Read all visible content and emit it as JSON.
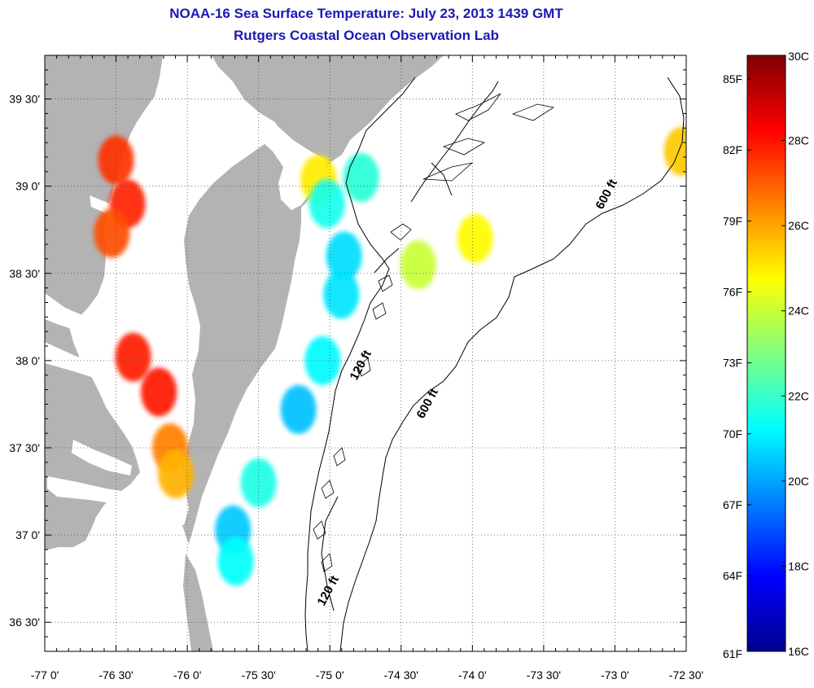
{
  "title": {
    "line1": "NOAA-16 Sea Surface Temperature:  July 23, 2013 1439 GMT",
    "line2": "Rutgers Coastal Ocean Observation Lab",
    "color": "#1a1ab4"
  },
  "map": {
    "lon_range": [
      -77.0,
      -72.5
    ],
    "lat_range": [
      36.333,
      39.75
    ],
    "land_color": "#b3b3b3",
    "water_color": "#ffffff",
    "grid": true,
    "lon_ticks": [
      {
        "value": -77.0,
        "label": "-77 0'"
      },
      {
        "value": -76.5,
        "label": "-76 30'"
      },
      {
        "value": -76.0,
        "label": "-76 0'"
      },
      {
        "value": -75.5,
        "label": "-75 30'"
      },
      {
        "value": -75.0,
        "label": "-75 0'"
      },
      {
        "value": -74.5,
        "label": "-74 30'"
      },
      {
        "value": -74.0,
        "label": "-74 0'"
      },
      {
        "value": -73.5,
        "label": "-73 30'"
      },
      {
        "value": -73.0,
        "label": "-73 0'"
      },
      {
        "value": -72.5,
        "label": "-72 30'"
      }
    ],
    "lat_ticks": [
      {
        "value": 39.5,
        "label": "39 30'"
      },
      {
        "value": 39.0,
        "label": "39 0'"
      },
      {
        "value": 38.5,
        "label": "38 30'"
      },
      {
        "value": 38.0,
        "label": "38 0'"
      },
      {
        "value": 37.5,
        "label": "37 30'"
      },
      {
        "value": 37.0,
        "label": "37 0'"
      },
      {
        "value": 36.5,
        "label": "36 30'"
      }
    ],
    "contour_labels": [
      "120 ft",
      "600 ft",
      "600 ft",
      "120 ft"
    ],
    "sst_patches": [
      {
        "lon": -76.5,
        "lat": 39.15,
        "temp_c": 27.6
      },
      {
        "lon": -76.42,
        "lat": 38.9,
        "temp_c": 27.8
      },
      {
        "lon": -76.53,
        "lat": 38.73,
        "temp_c": 27.2
      },
      {
        "lon": -76.38,
        "lat": 38.02,
        "temp_c": 27.9
      },
      {
        "lon": -76.2,
        "lat": 37.82,
        "temp_c": 28.0
      },
      {
        "lon": -76.12,
        "lat": 37.5,
        "temp_c": 26.5
      },
      {
        "lon": -76.08,
        "lat": 37.35,
        "temp_c": 25.8
      },
      {
        "lon": -75.08,
        "lat": 39.04,
        "temp_c": 25.0
      },
      {
        "lon": -75.02,
        "lat": 38.9,
        "temp_c": 21.5
      },
      {
        "lon": -74.78,
        "lat": 39.05,
        "temp_c": 21.8
      },
      {
        "lon": -74.9,
        "lat": 38.6,
        "temp_c": 20.8
      },
      {
        "lon": -74.92,
        "lat": 38.38,
        "temp_c": 20.9
      },
      {
        "lon": -75.05,
        "lat": 38.0,
        "temp_c": 21.2
      },
      {
        "lon": -75.22,
        "lat": 37.72,
        "temp_c": 20.4
      },
      {
        "lon": -75.5,
        "lat": 37.3,
        "temp_c": 21.6
      },
      {
        "lon": -75.68,
        "lat": 37.03,
        "temp_c": 20.5
      },
      {
        "lon": -75.66,
        "lat": 36.85,
        "temp_c": 21.3
      },
      {
        "lon": -74.38,
        "lat": 38.55,
        "temp_c": 24.0
      },
      {
        "lon": -73.98,
        "lat": 38.7,
        "temp_c": 24.8
      },
      {
        "lon": -72.53,
        "lat": 39.2,
        "temp_c": 25.5
      }
    ]
  },
  "colorbar": {
    "colors": [
      "#00008f",
      "#0000ff",
      "#0080ff",
      "#00ffff",
      "#80ff80",
      "#ffff00",
      "#ff8000",
      "#ff0000",
      "#800000"
    ],
    "range_c": [
      16,
      30
    ],
    "celsius_ticks": [
      {
        "value": 30,
        "label": "30C"
      },
      {
        "value": 28,
        "label": "28C"
      },
      {
        "value": 26,
        "label": "26C"
      },
      {
        "value": 24,
        "label": "24C"
      },
      {
        "value": 22,
        "label": "22C"
      },
      {
        "value": 20,
        "label": "20C"
      },
      {
        "value": 18,
        "label": "18C"
      },
      {
        "value": 16,
        "label": "16C"
      }
    ],
    "fahrenheit_ticks": [
      {
        "value": 85,
        "label": "85F"
      },
      {
        "value": 82,
        "label": "82F"
      },
      {
        "value": 79,
        "label": "79F"
      },
      {
        "value": 76,
        "label": "76F"
      },
      {
        "value": 73,
        "label": "73F"
      },
      {
        "value": 70,
        "label": "70F"
      },
      {
        "value": 67,
        "label": "67F"
      },
      {
        "value": 64,
        "label": "64F"
      },
      {
        "value": 61,
        "label": "61F"
      }
    ]
  }
}
